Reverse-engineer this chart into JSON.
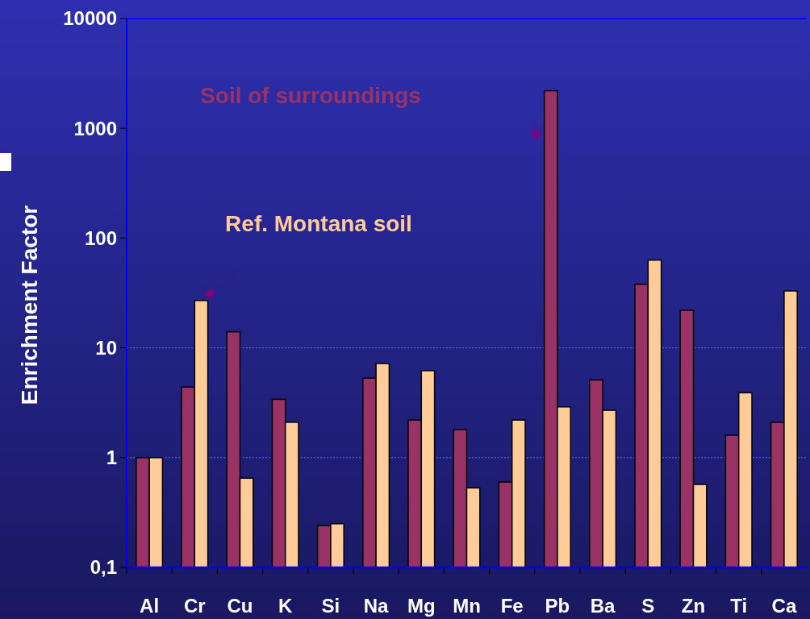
{
  "chart_data": {
    "type": "bar",
    "ylabel": "Enrichment Factor",
    "log": "y",
    "legend": false,
    "categories": [
      "Al",
      "Cr",
      "Cu",
      "K",
      "Si",
      "Na",
      "Mg",
      "Mn",
      "Fe",
      "Pb",
      "Ba",
      "S",
      "Zn",
      "Ti",
      "Ca"
    ],
    "series": [
      {
        "name": "Soil of surroundings",
        "color": "#993366",
        "values": [
          1,
          4.4,
          14,
          3.4,
          0.24,
          5.3,
          2.2,
          1.8,
          0.6,
          2200,
          5.1,
          38,
          22,
          1.6,
          2.1
        ]
      },
      {
        "name": "Ref. Montana soil",
        "color": "#ffcc99",
        "values": [
          1,
          27,
          0.65,
          2.1,
          0.25,
          7.2,
          6.2,
          0.53,
          2.2,
          2.9,
          2.7,
          63,
          0.57,
          3.9,
          33
        ]
      }
    ],
    "ylim": [
      0.1,
      10000
    ],
    "yticks": [
      {
        "value": 0.1,
        "label": "0,1"
      },
      1,
      10,
      100,
      1000,
      10000
    ],
    "ref_lines": [
      {
        "axis": "y",
        "value": 1,
        "line_style": "dotted",
        "color": "#6666ff"
      },
      {
        "axis": "y",
        "value": 10,
        "line_style": "dotted",
        "color": "#6666ff"
      }
    ]
  }
}
